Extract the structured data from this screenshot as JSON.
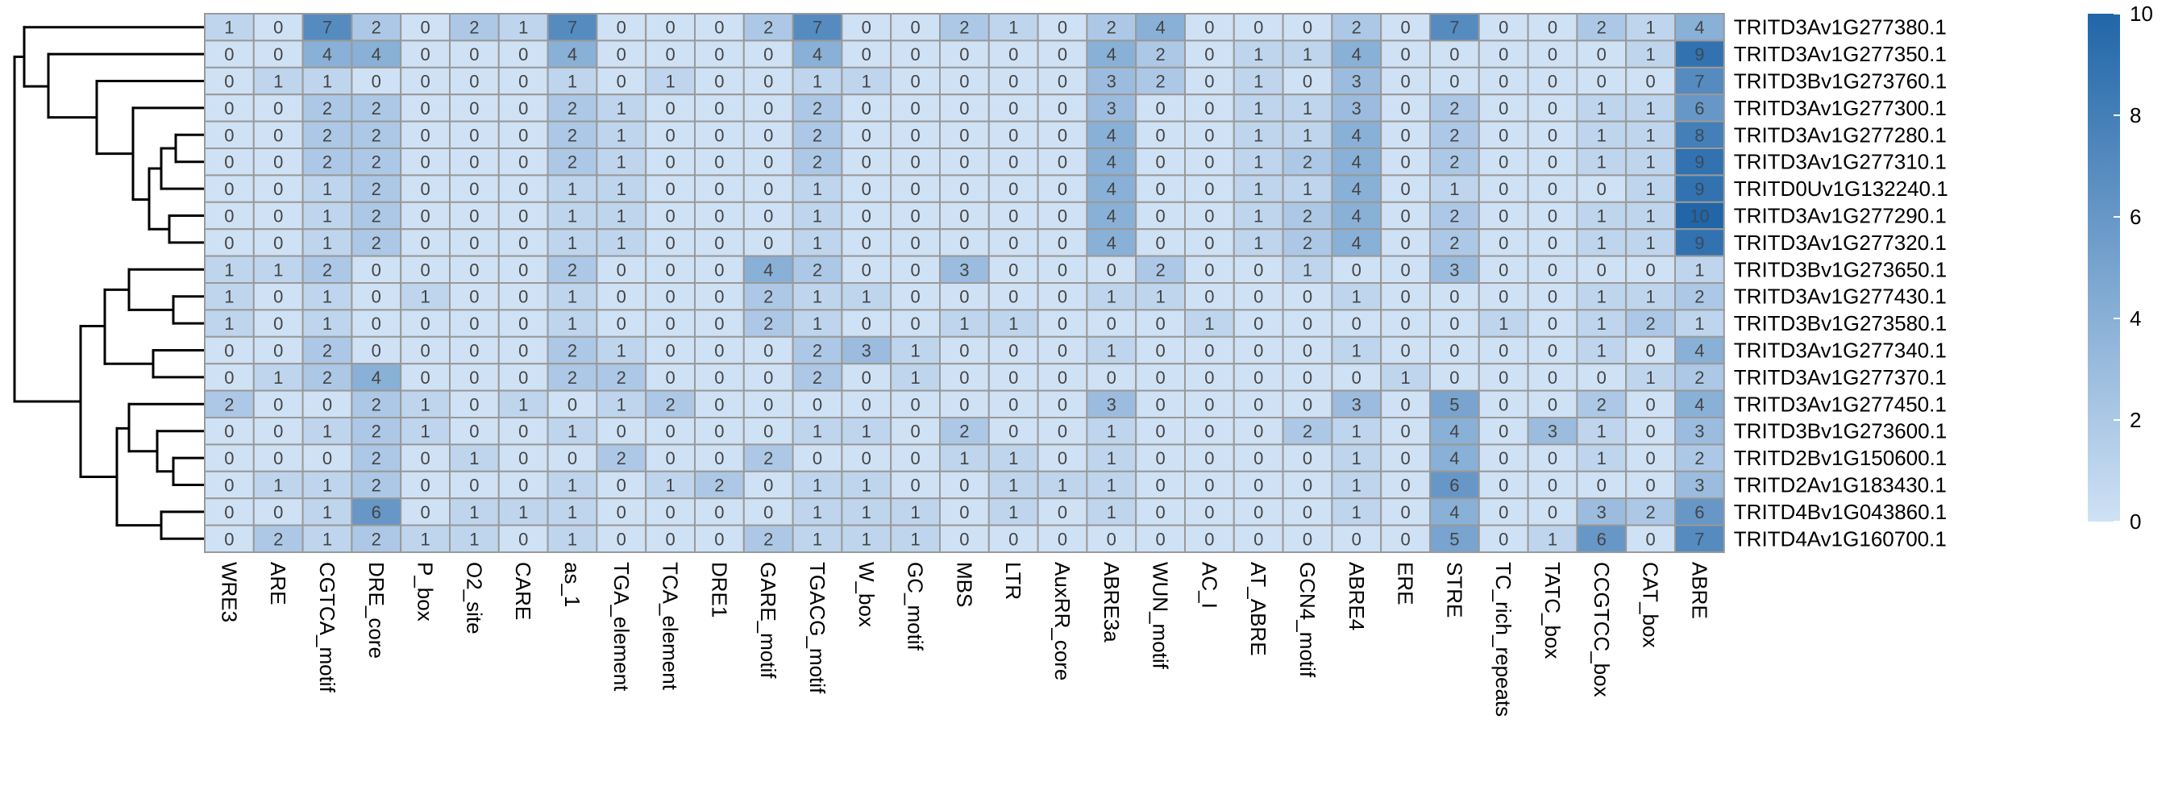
{
  "chart_data": {
    "type": "heatmap",
    "color_scale": {
      "min": 0,
      "max": 10,
      "low": "#cfe1f5",
      "high": "#2166a8",
      "ticks": [
        0,
        2,
        4,
        6,
        8,
        10
      ]
    },
    "columns": [
      "WRE3",
      "ARE",
      "CGTCA_motif",
      "DRE_core",
      "P_box",
      "O2_site",
      "CARE",
      "as_1",
      "TGA_element",
      "TCA_element",
      "DRE1",
      "GARE_motif",
      "TGACG_motif",
      "W_box",
      "GC_motif",
      "MBS",
      "LTR",
      "AuxRR_core",
      "ABRE3a",
      "WUN_motif",
      "AC_I",
      "AT_ABRE",
      "GCN4_motif",
      "ABRE4",
      "ERE",
      "STRE",
      "TC_rich_repeats",
      "TATC_box",
      "CCGTCC_box",
      "CAT_box",
      "ABRE"
    ],
    "rows": [
      "TRITD3Av1G277380.1",
      "TRITD3Av1G277350.1",
      "TRITD3Bv1G273760.1",
      "TRITD3Av1G277300.1",
      "TRITD3Av1G277280.1",
      "TRITD3Av1G277310.1",
      "TRITD0Uv1G132240.1",
      "TRITD3Av1G277290.1",
      "TRITD3Av1G277320.1",
      "TRITD3Bv1G273650.1",
      "TRITD3Av1G277430.1",
      "TRITD3Bv1G273580.1",
      "TRITD3Av1G277340.1",
      "TRITD3Av1G277370.1",
      "TRITD3Av1G277450.1",
      "TRITD3Bv1G273600.1",
      "TRITD2Bv1G150600.1",
      "TRITD2Av1G183430.1",
      "TRITD4Bv1G043860.1",
      "TRITD4Av1G160700.1"
    ],
    "values": [
      [
        1,
        0,
        7,
        2,
        0,
        2,
        1,
        7,
        0,
        0,
        0,
        2,
        7,
        0,
        0,
        2,
        1,
        0,
        2,
        4,
        0,
        0,
        0,
        2,
        0,
        7,
        0,
        0,
        2,
        1,
        4
      ],
      [
        0,
        0,
        4,
        4,
        0,
        0,
        0,
        4,
        0,
        0,
        0,
        0,
        4,
        0,
        0,
        0,
        0,
        0,
        4,
        2,
        0,
        1,
        1,
        4,
        0,
        0,
        0,
        0,
        0,
        1,
        9
      ],
      [
        0,
        1,
        1,
        0,
        0,
        0,
        0,
        1,
        0,
        1,
        0,
        0,
        1,
        1,
        0,
        0,
        0,
        0,
        3,
        2,
        0,
        1,
        0,
        3,
        0,
        0,
        0,
        0,
        0,
        0,
        7
      ],
      [
        0,
        0,
        2,
        2,
        0,
        0,
        0,
        2,
        1,
        0,
        0,
        0,
        2,
        0,
        0,
        0,
        0,
        0,
        3,
        0,
        0,
        1,
        1,
        3,
        0,
        2,
        0,
        0,
        1,
        1,
        6
      ],
      [
        0,
        0,
        2,
        2,
        0,
        0,
        0,
        2,
        1,
        0,
        0,
        0,
        2,
        0,
        0,
        0,
        0,
        0,
        4,
        0,
        0,
        1,
        1,
        4,
        0,
        2,
        0,
        0,
        1,
        1,
        8
      ],
      [
        0,
        0,
        2,
        2,
        0,
        0,
        0,
        2,
        1,
        0,
        0,
        0,
        2,
        0,
        0,
        0,
        0,
        0,
        4,
        0,
        0,
        1,
        2,
        4,
        0,
        2,
        0,
        0,
        1,
        1,
        9
      ],
      [
        0,
        0,
        1,
        2,
        0,
        0,
        0,
        1,
        1,
        0,
        0,
        0,
        1,
        0,
        0,
        0,
        0,
        0,
        4,
        0,
        0,
        1,
        1,
        4,
        0,
        1,
        0,
        0,
        0,
        1,
        9
      ],
      [
        0,
        0,
        1,
        2,
        0,
        0,
        0,
        1,
        1,
        0,
        0,
        0,
        1,
        0,
        0,
        0,
        0,
        0,
        4,
        0,
        0,
        1,
        2,
        4,
        0,
        2,
        0,
        0,
        1,
        1,
        10
      ],
      [
        0,
        0,
        1,
        2,
        0,
        0,
        0,
        1,
        1,
        0,
        0,
        0,
        1,
        0,
        0,
        0,
        0,
        0,
        4,
        0,
        0,
        1,
        2,
        4,
        0,
        2,
        0,
        0,
        1,
        1,
        9
      ],
      [
        1,
        1,
        2,
        0,
        0,
        0,
        0,
        2,
        0,
        0,
        0,
        4,
        2,
        0,
        0,
        3,
        0,
        0,
        0,
        2,
        0,
        0,
        1,
        0,
        0,
        3,
        0,
        0,
        0,
        0,
        1
      ],
      [
        1,
        0,
        1,
        0,
        1,
        0,
        0,
        1,
        0,
        0,
        0,
        2,
        1,
        1,
        0,
        0,
        0,
        0,
        1,
        1,
        0,
        0,
        0,
        1,
        0,
        0,
        0,
        0,
        1,
        1,
        2
      ],
      [
        1,
        0,
        1,
        0,
        0,
        0,
        0,
        1,
        0,
        0,
        0,
        2,
        1,
        0,
        0,
        1,
        1,
        0,
        0,
        0,
        1,
        0,
        0,
        0,
        0,
        0,
        1,
        0,
        1,
        2,
        1
      ],
      [
        0,
        0,
        2,
        0,
        0,
        0,
        0,
        2,
        1,
        0,
        0,
        0,
        2,
        3,
        1,
        0,
        0,
        0,
        1,
        0,
        0,
        0,
        0,
        1,
        0,
        0,
        0,
        0,
        1,
        0,
        4
      ],
      [
        0,
        1,
        2,
        4,
        0,
        0,
        0,
        2,
        2,
        0,
        0,
        0,
        2,
        0,
        1,
        0,
        0,
        0,
        0,
        0,
        0,
        0,
        0,
        0,
        1,
        0,
        0,
        0,
        0,
        1,
        2
      ],
      [
        2,
        0,
        0,
        2,
        1,
        0,
        1,
        0,
        1,
        2,
        0,
        0,
        0,
        0,
        0,
        0,
        0,
        0,
        3,
        0,
        0,
        0,
        0,
        3,
        0,
        5,
        0,
        0,
        2,
        0,
        4
      ],
      [
        0,
        0,
        1,
        2,
        1,
        0,
        0,
        1,
        0,
        0,
        0,
        0,
        1,
        1,
        0,
        2,
        0,
        0,
        1,
        0,
        0,
        0,
        2,
        1,
        0,
        4,
        0,
        3,
        1,
        0,
        3
      ],
      [
        0,
        0,
        0,
        2,
        0,
        1,
        0,
        0,
        2,
        0,
        0,
        2,
        0,
        0,
        0,
        1,
        1,
        0,
        1,
        0,
        0,
        0,
        0,
        1,
        0,
        4,
        0,
        0,
        1,
        0,
        2
      ],
      [
        0,
        1,
        1,
        2,
        0,
        0,
        0,
        1,
        0,
        1,
        2,
        0,
        1,
        1,
        0,
        0,
        1,
        1,
        1,
        0,
        0,
        0,
        0,
        1,
        0,
        6,
        0,
        0,
        0,
        0,
        3
      ],
      [
        0,
        0,
        1,
        6,
        0,
        1,
        1,
        1,
        0,
        0,
        0,
        0,
        1,
        1,
        1,
        0,
        1,
        0,
        1,
        0,
        0,
        0,
        0,
        1,
        0,
        4,
        0,
        0,
        3,
        2,
        6
      ],
      [
        0,
        2,
        1,
        2,
        1,
        1,
        0,
        1,
        0,
        0,
        0,
        2,
        1,
        1,
        1,
        0,
        0,
        0,
        0,
        0,
        0,
        0,
        0,
        0,
        0,
        5,
        0,
        1,
        6,
        0,
        7
      ]
    ]
  }
}
